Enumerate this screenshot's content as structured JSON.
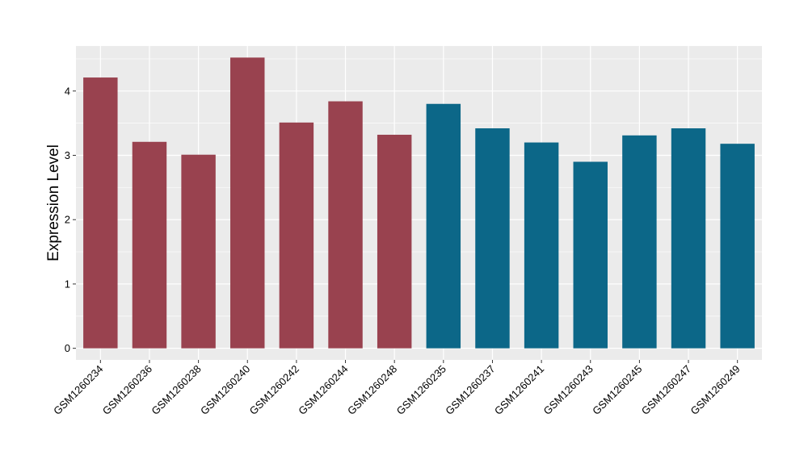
{
  "chart_data": {
    "type": "bar",
    "title": "",
    "xlabel": "",
    "ylabel": "Expression Level",
    "ylim": [
      -0.18,
      4.7
    ],
    "yticks": [
      0,
      1,
      2,
      3,
      4
    ],
    "ytick_labels": [
      "0",
      "1",
      "2",
      "3",
      "4"
    ],
    "grid": true,
    "legend": "none",
    "categories": [
      "GSM1260234",
      "GSM1260236",
      "GSM1260238",
      "GSM1260240",
      "GSM1260242",
      "GSM1260244",
      "GSM1260248",
      "GSM1260235",
      "GSM1260237",
      "GSM1260241",
      "GSM1260243",
      "GSM1260245",
      "GSM1260247",
      "GSM1260249"
    ],
    "values": [
      4.21,
      3.21,
      3.01,
      4.52,
      3.51,
      3.84,
      3.32,
      3.8,
      3.42,
      3.2,
      2.9,
      3.31,
      3.42,
      3.18
    ],
    "colors": [
      "#99424f",
      "#99424f",
      "#99424f",
      "#99424f",
      "#99424f",
      "#99424f",
      "#99424f",
      "#0c6788",
      "#0c6788",
      "#0c6788",
      "#0c6788",
      "#0c6788",
      "#0c6788",
      "#0c6788"
    ],
    "panel_color": "#ebebeb",
    "grid_color": "#ffffff"
  }
}
